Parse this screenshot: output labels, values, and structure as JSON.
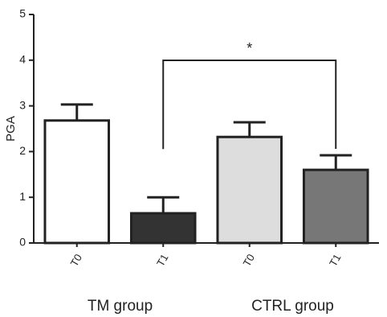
{
  "chart_data": {
    "type": "bar",
    "y_label": "PGA",
    "categories": [
      "T0",
      "T1",
      "T0",
      "T1"
    ],
    "groups": [
      "TM group",
      "CTRL group"
    ],
    "values": [
      2.68,
      0.65,
      2.32,
      1.6
    ],
    "errors": [
      0.35,
      0.35,
      0.32,
      0.32
    ],
    "colors": [
      "#ffffff",
      "#333333",
      "#dddddd",
      "#777777"
    ],
    "annotation": "*",
    "ylim": [
      0,
      5
    ],
    "yticks": [
      0,
      1,
      2,
      3,
      4,
      5
    ]
  }
}
